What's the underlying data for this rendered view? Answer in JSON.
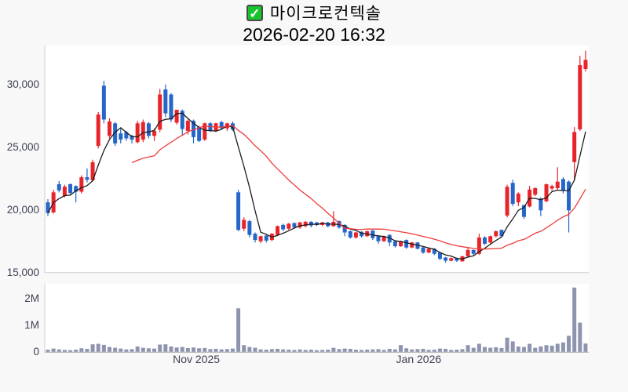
{
  "header": {
    "checkbox_icon": "checked-checkbox-icon",
    "check_glyph": "✓",
    "title": "마이크로컨텍솔",
    "datetime": "2026-02-20 16:32"
  },
  "chart_data": {
    "type": "candlestick",
    "title": "마이크로컨텍솔",
    "timestamp": "2026-02-20 16:32",
    "legend_position": "none",
    "grid": false,
    "price_axis": {
      "range": [
        15000,
        33000
      ],
      "ticks": [
        30000,
        25000,
        20000,
        15000
      ],
      "tick_labels": [
        "30,000",
        "25,000",
        "20,000",
        "15,000"
      ]
    },
    "volume_axis": {
      "range": [
        0,
        2550000
      ],
      "ticks": [
        2000000,
        1000000,
        0
      ],
      "tick_labels": [
        "2M",
        "1M",
        "0"
      ]
    },
    "x_axis": {
      "month_labels": [
        {
          "text": "Nov 2025",
          "index": 26.5
        },
        {
          "text": "Jan 2026",
          "index": 66.2
        }
      ]
    },
    "colors": {
      "up": "#e8242b",
      "down": "#2566c8",
      "ma_fast": "#1c1c1c",
      "ma_slow": "#ef3b3b",
      "volume_bar": "#8e94ae",
      "axis_label": "#3d4154",
      "axis_line": "#cfcfcf",
      "x_axis_line": "#a8a8a8",
      "plot_bg": "#ffffff",
      "page_bg": "#f8f8f8"
    },
    "moving_averages": [
      {
        "name": "ma-fast",
        "window": 5,
        "color": "#1c1c1c",
        "start_index": 0
      },
      {
        "name": "ma-slow",
        "window": 20,
        "color": "#ef3b3b",
        "start_index": 15
      }
    ],
    "candles_format": [
      "open",
      "high",
      "low",
      "close",
      "volume"
    ],
    "candles": [
      [
        20600,
        20850,
        19500,
        19750,
        80000
      ],
      [
        19800,
        21600,
        19700,
        21400,
        120000
      ],
      [
        22050,
        22300,
        21400,
        21550,
        90000
      ],
      [
        21100,
        22000,
        21000,
        21850,
        70000
      ],
      [
        22050,
        22100,
        21200,
        21350,
        60000
      ],
      [
        21900,
        21950,
        20600,
        21450,
        80000
      ],
      [
        21450,
        22750,
        21300,
        22600,
        130000
      ],
      [
        22600,
        23300,
        22200,
        22400,
        110000
      ],
      [
        22350,
        24000,
        22300,
        23800,
        280000
      ],
      [
        25100,
        27800,
        24900,
        27600,
        300000
      ],
      [
        29900,
        30300,
        26900,
        27200,
        260000
      ],
      [
        25900,
        27300,
        25700,
        27050,
        180000
      ],
      [
        26900,
        27000,
        25100,
        25300,
        150000
      ],
      [
        26100,
        26500,
        25300,
        25600,
        120000
      ],
      [
        26200,
        26300,
        25500,
        25700,
        90000
      ],
      [
        25900,
        26000,
        25300,
        25600,
        100000
      ],
      [
        25400,
        27100,
        25300,
        26900,
        200000
      ],
      [
        25600,
        27200,
        25400,
        27000,
        150000
      ],
      [
        26900,
        27000,
        25700,
        25900,
        130000
      ],
      [
        25900,
        26500,
        25500,
        26300,
        120000
      ],
      [
        26400,
        29650,
        26200,
        29200,
        270000
      ],
      [
        29600,
        30000,
        27400,
        27700,
        280000
      ],
      [
        29200,
        29300,
        27000,
        27200,
        200000
      ],
      [
        26950,
        27990,
        26800,
        27980,
        160000
      ],
      [
        27900,
        28000,
        25900,
        26450,
        180000
      ],
      [
        26300,
        27200,
        26000,
        27100,
        140000
      ],
      [
        27100,
        27200,
        25300,
        25800,
        160000
      ],
      [
        26600,
        26700,
        25400,
        25500,
        130000
      ],
      [
        25600,
        26950,
        25500,
        26900,
        140000
      ],
      [
        26900,
        27000,
        26200,
        26300,
        100000
      ],
      [
        26300,
        26950,
        26200,
        26900,
        110000
      ],
      [
        27000,
        27100,
        26400,
        26500,
        90000
      ],
      [
        26500,
        26950,
        26300,
        26900,
        100000
      ],
      [
        26900,
        27050,
        26300,
        26400,
        120000
      ],
      [
        21400,
        21600,
        18300,
        18400,
        1630000
      ],
      [
        18500,
        19400,
        18300,
        19200,
        250000
      ],
      [
        19100,
        19200,
        17800,
        18000,
        180000
      ],
      [
        18100,
        18200,
        17400,
        17600,
        150000
      ],
      [
        17500,
        17950,
        17350,
        17900,
        90000
      ],
      [
        17950,
        18000,
        17400,
        17550,
        80000
      ],
      [
        17600,
        18150,
        17500,
        18100,
        100000
      ],
      [
        18000,
        18750,
        17900,
        18700,
        110000
      ],
      [
        18800,
        18900,
        18300,
        18450,
        90000
      ],
      [
        18500,
        18950,
        18400,
        18900,
        80000
      ],
      [
        18950,
        19000,
        18500,
        18600,
        70000
      ],
      [
        18600,
        19050,
        18500,
        19000,
        90000
      ],
      [
        18700,
        19100,
        18600,
        19050,
        70000
      ],
      [
        19050,
        19100,
        18600,
        18750,
        80000
      ],
      [
        19000,
        19050,
        18700,
        18800,
        60000
      ],
      [
        18800,
        19050,
        18700,
        19000,
        70000
      ],
      [
        19000,
        19050,
        18600,
        18700,
        80000
      ],
      [
        18700,
        19900,
        18650,
        19050,
        150000
      ],
      [
        19100,
        19150,
        18500,
        18600,
        100000
      ],
      [
        18800,
        18850,
        17900,
        18200,
        120000
      ],
      [
        18300,
        18350,
        17700,
        17800,
        110000
      ],
      [
        17800,
        18250,
        17700,
        18200,
        80000
      ],
      [
        18250,
        18300,
        17800,
        17900,
        70000
      ],
      [
        17900,
        18350,
        17850,
        18300,
        80000
      ],
      [
        18350,
        18400,
        17600,
        17750,
        90000
      ],
      [
        17900,
        17950,
        17300,
        17500,
        100000
      ],
      [
        17500,
        17950,
        17450,
        17900,
        70000
      ],
      [
        18000,
        18050,
        17100,
        17400,
        110000
      ],
      [
        17500,
        17550,
        17000,
        17100,
        90000
      ],
      [
        17100,
        17550,
        17050,
        17500,
        250000
      ],
      [
        17600,
        17650,
        16900,
        17000,
        130000
      ],
      [
        17000,
        17450,
        16950,
        17400,
        90000
      ],
      [
        17400,
        17450,
        16850,
        16900,
        100000
      ],
      [
        17000,
        17050,
        16500,
        16600,
        110000
      ],
      [
        16600,
        16950,
        16550,
        16900,
        70000
      ],
      [
        16900,
        16950,
        16400,
        16500,
        80000
      ],
      [
        16600,
        16650,
        16000,
        16100,
        120000
      ],
      [
        16200,
        16250,
        15800,
        15950,
        110000
      ],
      [
        15950,
        16200,
        15900,
        16150,
        70000
      ],
      [
        16150,
        16200,
        15850,
        15950,
        80000
      ],
      [
        15900,
        16350,
        15850,
        16300,
        100000
      ],
      [
        16300,
        17000,
        16250,
        16800,
        250000
      ],
      [
        16800,
        16850,
        16400,
        16500,
        150000
      ],
      [
        16500,
        18100,
        16400,
        17800,
        300000
      ],
      [
        17800,
        17900,
        17200,
        17300,
        180000
      ],
      [
        17400,
        17950,
        17300,
        17900,
        150000
      ],
      [
        17900,
        18350,
        17800,
        18300,
        170000
      ],
      [
        18400,
        18450,
        17800,
        17900,
        140000
      ],
      [
        19550,
        22000,
        19400,
        21840,
        530000
      ],
      [
        22150,
        22400,
        20300,
        20480,
        390000
      ],
      [
        20600,
        21400,
        20300,
        21300,
        200000
      ],
      [
        20380,
        20400,
        19300,
        19440,
        180000
      ],
      [
        20270,
        21900,
        20200,
        21620,
        300000
      ],
      [
        21210,
        21800,
        21100,
        21730,
        150000
      ],
      [
        20900,
        21000,
        19500,
        19960,
        200000
      ],
      [
        20690,
        22100,
        20600,
        22040,
        250000
      ],
      [
        21700,
        22000,
        21500,
        21900,
        230000
      ],
      [
        21730,
        23400,
        21600,
        22250,
        300000
      ],
      [
        22460,
        22600,
        21300,
        21530,
        350000
      ],
      [
        22250,
        22350,
        18200,
        19960,
        600000
      ],
      [
        23810,
        26600,
        22400,
        26210,
        2410000
      ],
      [
        26420,
        32270,
        26300,
        31540,
        1090000
      ],
      [
        31230,
        32690,
        31030,
        31960,
        310000
      ]
    ]
  }
}
